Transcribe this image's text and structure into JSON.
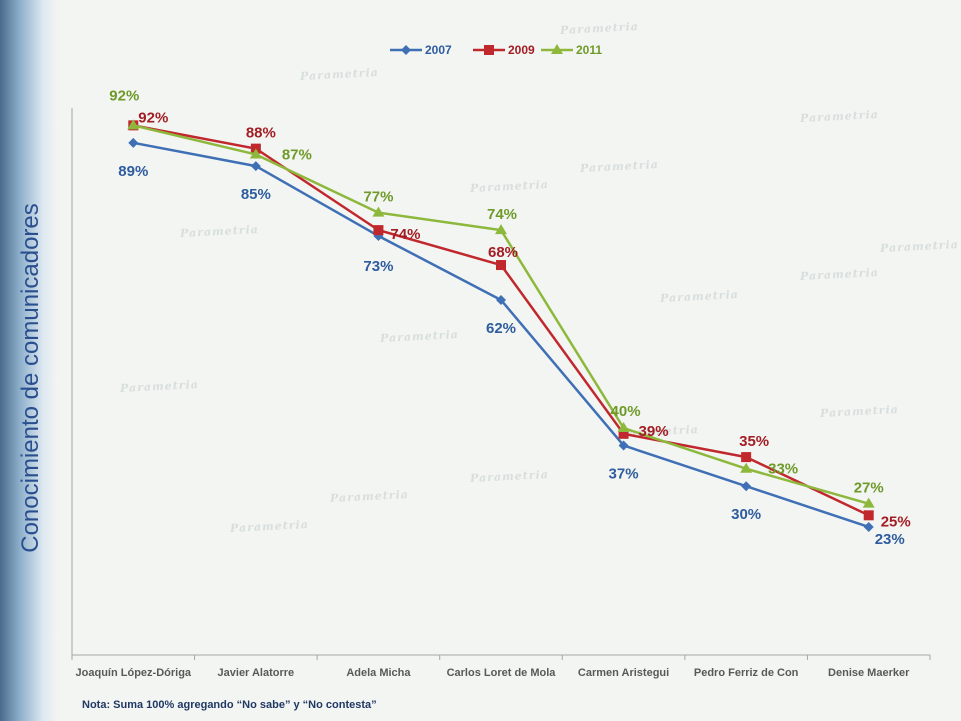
{
  "chart_data": {
    "type": "line",
    "title": "",
    "xlabel": "",
    "ylabel": "Conocimiento de comunicadores",
    "categories": [
      "Joaquín López-Dóriga",
      "Javier Alatorre",
      "Adela Micha",
      "Carlos Loret de Mola",
      "Carmen Aristegui",
      "Pedro Ferriz de Con",
      "Denise Maerker"
    ],
    "series": [
      {
        "name": "2007",
        "color": "#3f6fb5",
        "marker": "diamond",
        "values": [
          89,
          85,
          73,
          62,
          37,
          30,
          23
        ],
        "labels": [
          "89%",
          "85%",
          "73%",
          "62%",
          "37%",
          "30%",
          "23%"
        ]
      },
      {
        "name": "2009",
        "color": "#c0282d",
        "marker": "square",
        "values": [
          92,
          88,
          74,
          68,
          39,
          35,
          25
        ],
        "labels": [
          "92%",
          "88%",
          "74%",
          "68%",
          "39%",
          "35%",
          "25%"
        ]
      },
      {
        "name": "2011",
        "color": "#8db83c",
        "marker": "triangle",
        "values": [
          92,
          87,
          77,
          74,
          40,
          33,
          27
        ],
        "labels": [
          "92%",
          "87%",
          "77%",
          "74%",
          "40%",
          "33%",
          "27%"
        ]
      }
    ],
    "legend_position": "top-center",
    "grid": false
  },
  "watermark": "Parametria",
  "note": "Nota: Suma 100% agregando “No sabe” y “No contesta”",
  "colors": {
    "label2007": "#2e5c9e",
    "label2009": "#a31d24",
    "label2011": "#6f9a2a",
    "axis": "#a6a6a6",
    "ylabel": "#2a4f8f"
  }
}
